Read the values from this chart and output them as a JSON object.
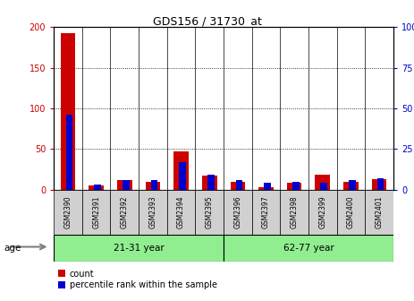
{
  "title": "GDS156 / 31730_at",
  "samples": [
    "GSM2390",
    "GSM2391",
    "GSM2392",
    "GSM2393",
    "GSM2394",
    "GSM2395",
    "GSM2396",
    "GSM2397",
    "GSM2398",
    "GSM2399",
    "GSM2400",
    "GSM2401"
  ],
  "count_values": [
    192,
    5,
    12,
    10,
    47,
    17,
    10,
    3,
    8,
    18,
    10,
    13
  ],
  "percentile_values": [
    46,
    3,
    6,
    6,
    17,
    9,
    6,
    4,
    5,
    4,
    6,
    7
  ],
  "group1_label": "21-31 year",
  "group1_n": 6,
  "group2_label": "62-77 year",
  "group2_n": 6,
  "age_label": "age",
  "ylim_left": [
    0,
    200
  ],
  "ylim_right": [
    0,
    100
  ],
  "yticks_left": [
    0,
    50,
    100,
    150,
    200
  ],
  "yticks_right": [
    0,
    25,
    50,
    75,
    100
  ],
  "ytick_labels_right": [
    "0",
    "25",
    "50",
    "75",
    "100%"
  ],
  "count_color": "#cc0000",
  "percentile_color": "#0000cc",
  "group_bg_color": "#90ee90",
  "sample_bg_color": "#d0d0d0",
  "legend_count": "count",
  "legend_percentile": "percentile rank within the sample"
}
